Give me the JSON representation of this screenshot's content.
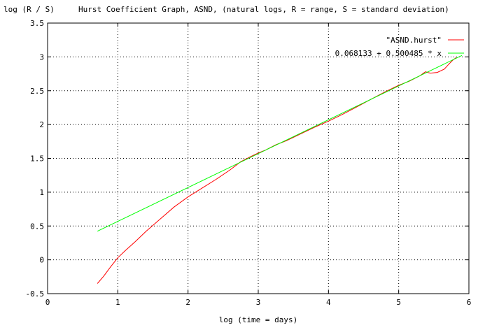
{
  "chart_data": {
    "type": "line",
    "title": "Hurst Coefficient Graph, ASND, (natural logs, R = range, S = standard deviation)",
    "xlabel": "log (time = days)",
    "ylabel": "log (R / S)",
    "xlim": [
      0,
      6
    ],
    "ylim": [
      -0.5,
      3.5
    ],
    "x_ticks": [
      0,
      1,
      2,
      3,
      4,
      5,
      6
    ],
    "x_tick_labels": [
      "0",
      "1",
      "2",
      "3",
      "4",
      "5",
      "6"
    ],
    "y_ticks": [
      -0.5,
      0,
      0.5,
      1,
      1.5,
      2,
      2.5,
      3,
      3.5
    ],
    "y_tick_labels": [
      "-0.5",
      "0",
      "0.5",
      "1",
      "1.5",
      "2",
      "2.5",
      "3",
      "3.5"
    ],
    "grid": true,
    "legend_position": "top-right",
    "series": [
      {
        "name": "\"ASND.hurst\"",
        "color": "#ff0000",
        "x": [
          0.71,
          0.8,
          0.9,
          1.0,
          1.1,
          1.25,
          1.4,
          1.6,
          1.8,
          2.0,
          2.2,
          2.4,
          2.6,
          2.75,
          2.9,
          3.0,
          3.1,
          3.25,
          3.4,
          3.6,
          3.8,
          4.0,
          4.2,
          4.4,
          4.6,
          4.8,
          5.0,
          5.15,
          5.3,
          5.38,
          5.45,
          5.55,
          5.65,
          5.72,
          5.78,
          5.82
        ],
        "y": [
          -0.35,
          -0.24,
          -0.1,
          0.03,
          0.13,
          0.27,
          0.42,
          0.6,
          0.78,
          0.93,
          1.06,
          1.19,
          1.33,
          1.45,
          1.53,
          1.58,
          1.62,
          1.7,
          1.76,
          1.86,
          1.96,
          2.05,
          2.15,
          2.26,
          2.37,
          2.48,
          2.58,
          2.64,
          2.72,
          2.78,
          2.76,
          2.77,
          2.82,
          2.9,
          2.96,
          2.99
        ]
      },
      {
        "name": "0.068133 + 0.500485 * x",
        "color": "#00ff00",
        "intercept": 0.068133,
        "slope": 0.500485,
        "x": [
          0.71,
          5.9
        ],
        "y": [
          0.4235,
          3.021
        ]
      }
    ]
  }
}
